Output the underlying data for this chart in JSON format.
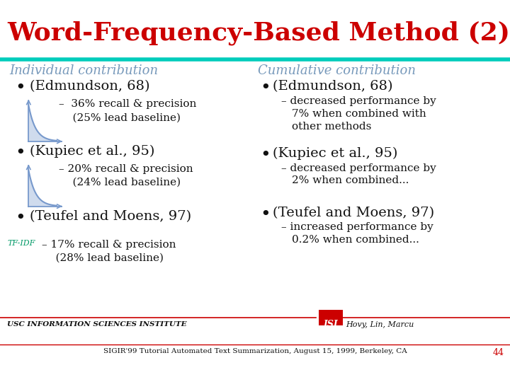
{
  "title": "Word-Frequency-Based Method (2)",
  "title_color": "#cc0000",
  "bg_color": "#ffffff",
  "teal_line_color": "#00ccbb",
  "col1_header": "Individual contribution",
  "col2_header": "Cumulative contribution",
  "header_color": "#7799bb",
  "footer_left": "USC INFORMATION SCIENCES INSTITUTE",
  "footer_right": "Hovy, Lin, Marcu",
  "footer_bottom": "SIGIR'99 Tutorial Automated Text Summarization, August 15, 1999, Berkeley, CA",
  "page_number": "44",
  "red_color": "#cc0000",
  "dark_text": "#111111",
  "graph_color": "#7799cc",
  "green_color": "#009966"
}
